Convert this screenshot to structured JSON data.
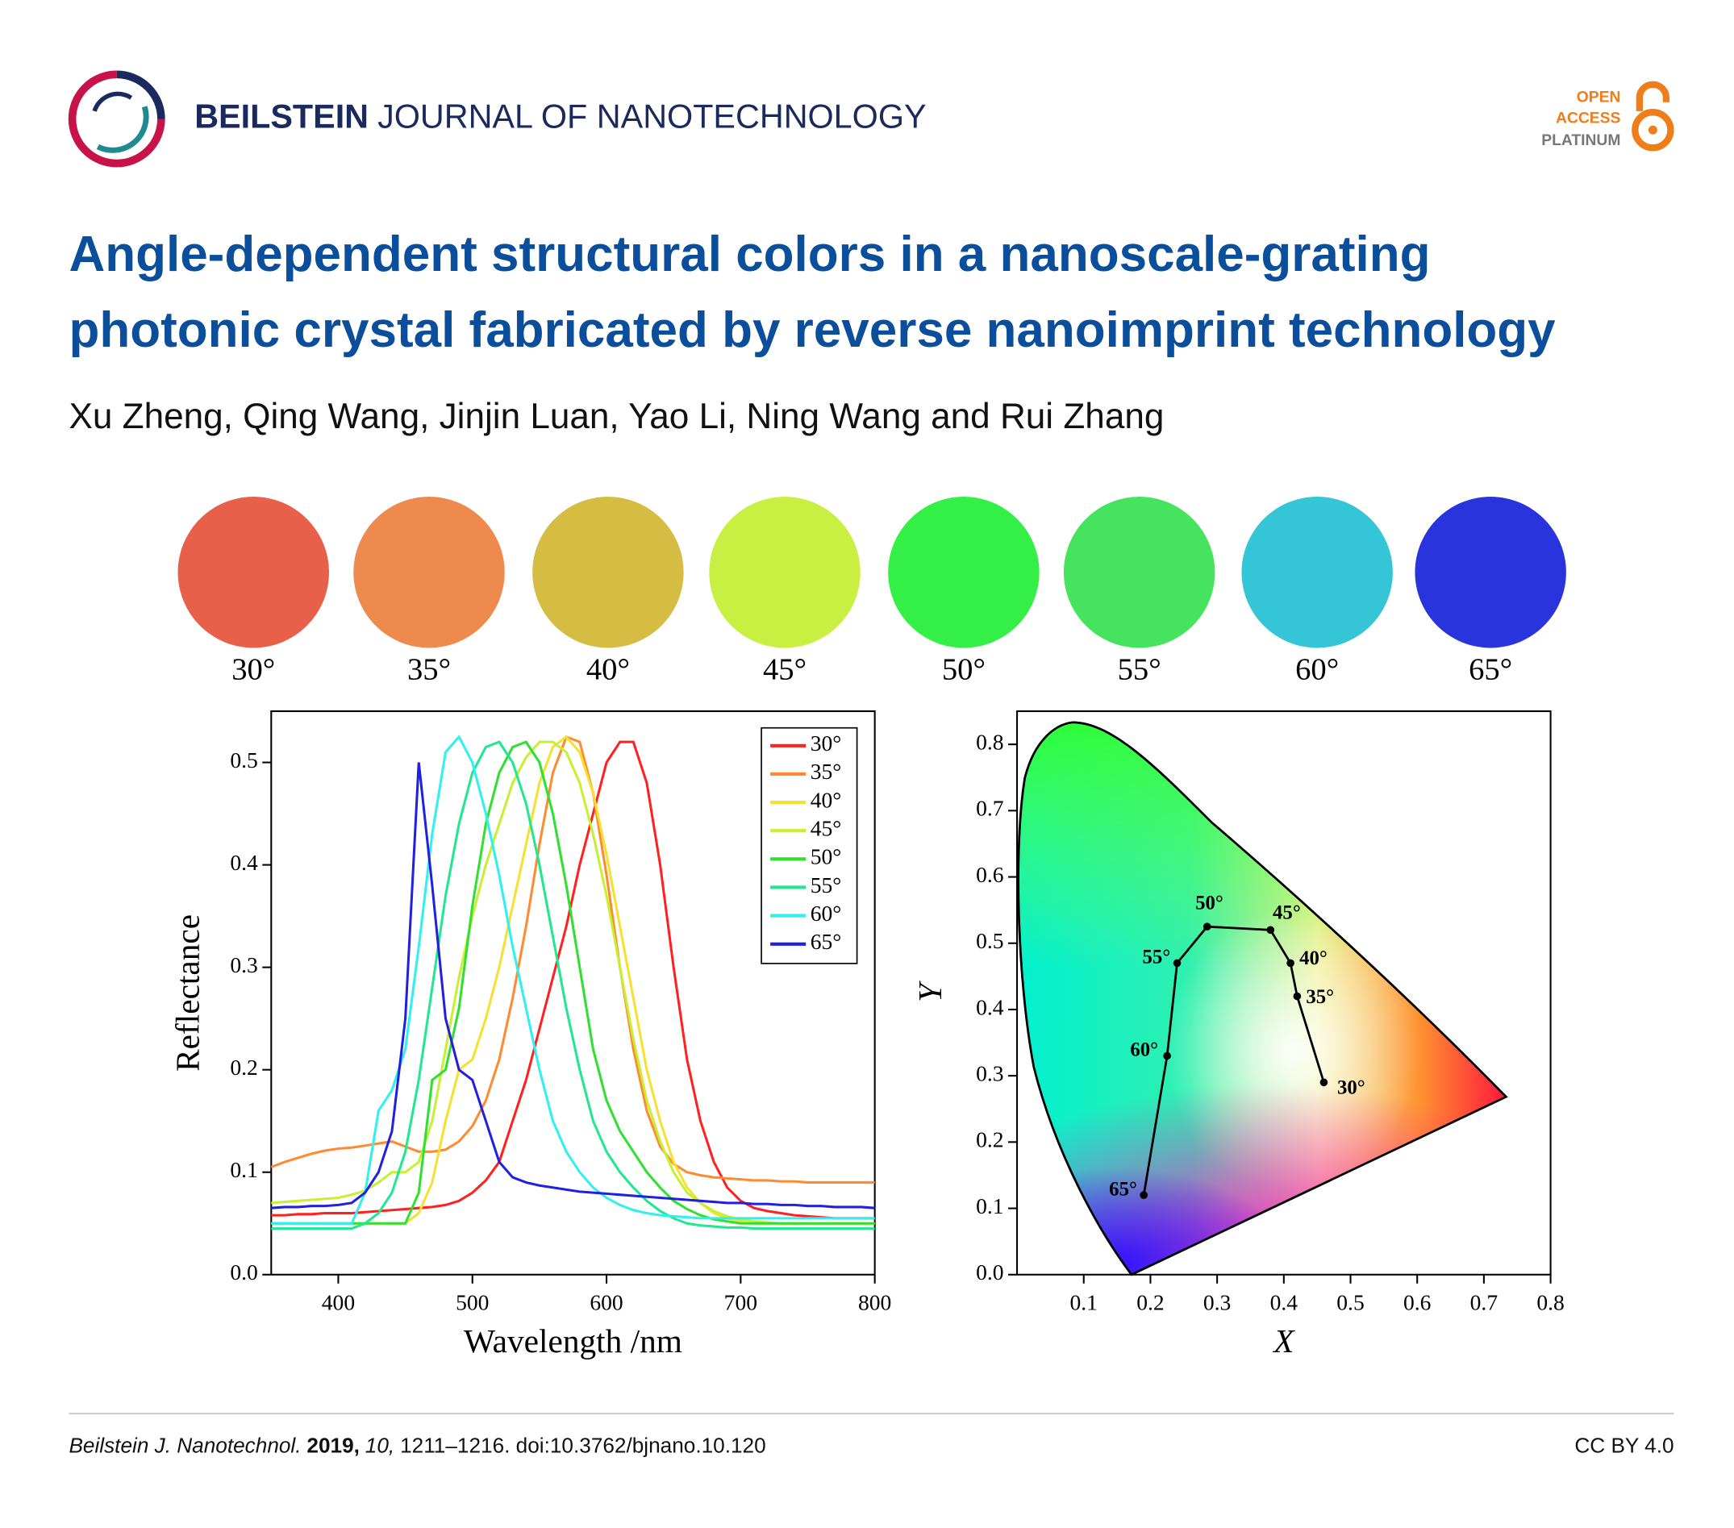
{
  "header": {
    "journal_bold": "BEILSTEIN",
    "journal_rest": "JOURNAL OF NANOTECHNOLOGY",
    "badge": [
      "OPEN",
      "ACCESS",
      "PLATINUM"
    ]
  },
  "title": [
    "Angle-dependent structural colors in a nanoscale-grating",
    "photonic crystal fabricated by reverse nanoimprint technology"
  ],
  "authors": "Xu Zheng, Qing Wang, Jinjin Luan, Yao Li, Ning Wang and Rui Zhang",
  "swatches": [
    {
      "label": "30°",
      "color": "#e8604a"
    },
    {
      "label": "35°",
      "color": "#ef8a4e"
    },
    {
      "label": "40°",
      "color": "#d4bd42"
    },
    {
      "label": "45°",
      "color": "#c9ef42"
    },
    {
      "label": "50°",
      "color": "#34f046"
    },
    {
      "label": "55°",
      "color": "#46e45e"
    },
    {
      "label": "60°",
      "color": "#34c6d6"
    },
    {
      "label": "65°",
      "color": "#2a34dc"
    }
  ],
  "chart_data": [
    {
      "type": "line",
      "x_label": "Wavelength /nm",
      "y_label": "Reflectance",
      "xlim": [
        350,
        800
      ],
      "ylim": [
        0,
        0.55
      ],
      "xticks": [
        400,
        500,
        600,
        700,
        800
      ],
      "yticks": [
        {
          "value": 0,
          "label": "0.0"
        },
        0.1,
        0.2,
        0.3,
        0.4,
        0.5
      ],
      "x": [
        350,
        360,
        370,
        380,
        390,
        400,
        410,
        420,
        430,
        440,
        450,
        460,
        470,
        480,
        490,
        500,
        510,
        520,
        530,
        540,
        550,
        560,
        570,
        580,
        590,
        600,
        610,
        620,
        630,
        640,
        650,
        660,
        670,
        680,
        690,
        700,
        710,
        720,
        730,
        740,
        750,
        760,
        770,
        780,
        790,
        800
      ],
      "series": [
        {
          "name": "30°",
          "color": "#ff2020",
          "values": [
            0.058,
            0.058,
            0.059,
            0.059,
            0.06,
            0.06,
            0.06,
            0.061,
            0.062,
            0.063,
            0.064,
            0.065,
            0.066,
            0.068,
            0.072,
            0.08,
            0.092,
            0.11,
            0.15,
            0.19,
            0.24,
            0.29,
            0.34,
            0.4,
            0.45,
            0.5,
            0.52,
            0.52,
            0.48,
            0.4,
            0.3,
            0.21,
            0.15,
            0.11,
            0.085,
            0.072,
            0.065,
            0.062,
            0.06,
            0.058,
            0.057,
            0.056,
            0.055,
            0.055,
            0.055,
            0.055
          ]
        },
        {
          "name": "35°",
          "color": "#ff8a30",
          "values": [
            0.105,
            0.11,
            0.114,
            0.118,
            0.121,
            0.123,
            0.124,
            0.126,
            0.128,
            0.13,
            0.125,
            0.12,
            0.12,
            0.122,
            0.13,
            0.145,
            0.17,
            0.21,
            0.27,
            0.34,
            0.42,
            0.49,
            0.525,
            0.52,
            0.47,
            0.39,
            0.3,
            0.22,
            0.16,
            0.125,
            0.108,
            0.1,
            0.097,
            0.095,
            0.094,
            0.093,
            0.092,
            0.092,
            0.091,
            0.091,
            0.09,
            0.09,
            0.09,
            0.09,
            0.09,
            0.09
          ]
        },
        {
          "name": "40°",
          "color": "#f6e030",
          "values": [
            0.05,
            0.05,
            0.05,
            0.05,
            0.05,
            0.05,
            0.05,
            0.05,
            0.05,
            0.05,
            0.05,
            0.06,
            0.09,
            0.15,
            0.2,
            0.21,
            0.25,
            0.3,
            0.36,
            0.42,
            0.48,
            0.515,
            0.525,
            0.51,
            0.47,
            0.41,
            0.34,
            0.27,
            0.2,
            0.15,
            0.11,
            0.085,
            0.07,
            0.06,
            0.055,
            0.052,
            0.05,
            0.05,
            0.05,
            0.05,
            0.05,
            0.05,
            0.05,
            0.05,
            0.05,
            0.05
          ]
        },
        {
          "name": "45°",
          "color": "#c8f030",
          "values": [
            0.07,
            0.071,
            0.072,
            0.073,
            0.074,
            0.075,
            0.078,
            0.082,
            0.09,
            0.1,
            0.1,
            0.11,
            0.15,
            0.22,
            0.29,
            0.35,
            0.4,
            0.44,
            0.48,
            0.505,
            0.52,
            0.52,
            0.51,
            0.48,
            0.43,
            0.37,
            0.3,
            0.23,
            0.17,
            0.13,
            0.1,
            0.08,
            0.07,
            0.062,
            0.057,
            0.054,
            0.052,
            0.051,
            0.05,
            0.05,
            0.05,
            0.05,
            0.05,
            0.05,
            0.05,
            0.05
          ]
        },
        {
          "name": "50°",
          "color": "#30e030",
          "values": [
            0.05,
            0.05,
            0.05,
            0.05,
            0.05,
            0.05,
            0.05,
            0.05,
            0.05,
            0.05,
            0.05,
            0.08,
            0.19,
            0.2,
            0.26,
            0.36,
            0.44,
            0.49,
            0.515,
            0.52,
            0.5,
            0.45,
            0.38,
            0.3,
            0.22,
            0.17,
            0.14,
            0.12,
            0.1,
            0.085,
            0.072,
            0.064,
            0.058,
            0.054,
            0.052,
            0.05,
            0.05,
            0.05,
            0.05,
            0.05,
            0.05,
            0.05,
            0.05,
            0.05,
            0.05,
            0.05
          ]
        },
        {
          "name": "55°",
          "color": "#20e890",
          "values": [
            0.045,
            0.045,
            0.045,
            0.045,
            0.045,
            0.045,
            0.045,
            0.05,
            0.06,
            0.08,
            0.12,
            0.19,
            0.28,
            0.37,
            0.44,
            0.49,
            0.515,
            0.52,
            0.5,
            0.46,
            0.4,
            0.33,
            0.26,
            0.2,
            0.15,
            0.12,
            0.1,
            0.085,
            0.072,
            0.062,
            0.055,
            0.05,
            0.048,
            0.047,
            0.046,
            0.046,
            0.045,
            0.045,
            0.045,
            0.045,
            0.045,
            0.045,
            0.045,
            0.045,
            0.045,
            0.045
          ]
        },
        {
          "name": "60°",
          "color": "#30f0f0",
          "values": [
            0.05,
            0.05,
            0.05,
            0.05,
            0.05,
            0.05,
            0.05,
            0.08,
            0.16,
            0.18,
            0.22,
            0.32,
            0.43,
            0.51,
            0.525,
            0.5,
            0.45,
            0.39,
            0.32,
            0.26,
            0.2,
            0.15,
            0.12,
            0.1,
            0.085,
            0.075,
            0.068,
            0.063,
            0.06,
            0.058,
            0.057,
            0.056,
            0.055,
            0.055,
            0.055,
            0.055,
            0.055,
            0.055,
            0.055,
            0.055,
            0.055,
            0.055,
            0.055,
            0.055,
            0.055,
            0.055
          ]
        },
        {
          "name": "65°",
          "color": "#2020e0",
          "values": [
            0.065,
            0.066,
            0.066,
            0.067,
            0.067,
            0.068,
            0.07,
            0.08,
            0.1,
            0.14,
            0.25,
            0.5,
            0.38,
            0.25,
            0.2,
            0.19,
            0.15,
            0.11,
            0.095,
            0.09,
            0.087,
            0.085,
            0.083,
            0.081,
            0.08,
            0.079,
            0.078,
            0.077,
            0.076,
            0.075,
            0.074,
            0.073,
            0.072,
            0.071,
            0.07,
            0.07,
            0.069,
            0.069,
            0.068,
            0.068,
            0.067,
            0.067,
            0.066,
            0.066,
            0.066,
            0.065
          ]
        }
      ]
    },
    {
      "type": "scatter",
      "x_label": "X",
      "y_label": "Y",
      "xlim": [
        0,
        0.8
      ],
      "ylim": [
        0,
        0.85
      ],
      "xticks": [
        0.1,
        0.2,
        0.3,
        0.4,
        0.5,
        0.6,
        0.7,
        0.8
      ],
      "yticks": [
        {
          "value": 0,
          "label": "0.0"
        },
        0.1,
        0.2,
        0.3,
        0.4,
        0.5,
        0.6,
        0.7,
        0.8
      ],
      "color": "#000000",
      "x": [
        0.46,
        0.42,
        0.41,
        0.38,
        0.285,
        0.24,
        0.225,
        0.19
      ],
      "values": [
        0.29,
        0.42,
        0.47,
        0.52,
        0.525,
        0.47,
        0.33,
        0.12
      ],
      "point_labels": [
        "30°",
        "35°",
        "40°",
        "45°",
        "50°",
        "55°",
        "60°",
        "65°"
      ]
    }
  ],
  "footer": {
    "journal": "Beilstein J. Nanotechnol.",
    "year": "2019,",
    "volume": "10,",
    "pages": "1211–1216. doi:10.3762/bjnano.10.120",
    "license": "CC BY 4.0"
  }
}
